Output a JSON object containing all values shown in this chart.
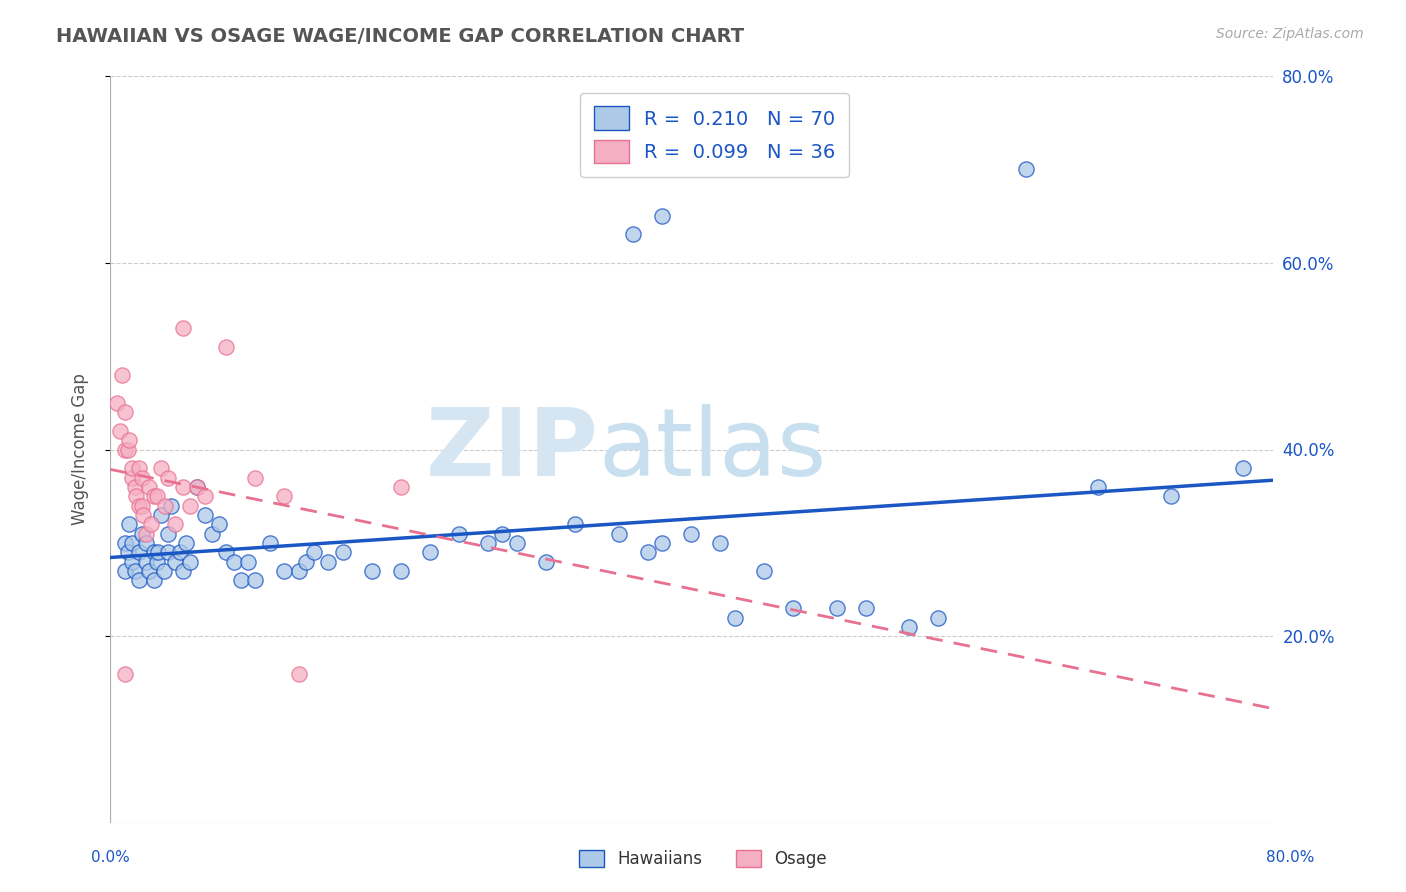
{
  "title": "HAWAIIAN VS OSAGE WAGE/INCOME GAP CORRELATION CHART",
  "source": "Source: ZipAtlas.com",
  "ylabel": "Wage/Income Gap",
  "xmin": 0.0,
  "xmax": 0.8,
  "ymin": 0.0,
  "ymax": 0.8,
  "yticks": [
    0.2,
    0.4,
    0.6,
    0.8
  ],
  "ytick_labels": [
    "20.0%",
    "40.0%",
    "60.0%",
    "80.0%"
  ],
  "watermark_zip": "ZIP",
  "watermark_atlas": "atlas",
  "hawaiians_R": 0.21,
  "hawaiians_N": 70,
  "osage_R": 0.099,
  "osage_N": 36,
  "hawaiian_color": "#adc9e8",
  "osage_color": "#f5afc4",
  "hawaiian_line_color": "#1a56c4",
  "osage_line_color": "#e87090",
  "hawaiian_scatter": [
    [
      0.01,
      0.27
    ],
    [
      0.01,
      0.3
    ],
    [
      0.012,
      0.29
    ],
    [
      0.013,
      0.32
    ],
    [
      0.015,
      0.28
    ],
    [
      0.015,
      0.3
    ],
    [
      0.017,
      0.27
    ],
    [
      0.02,
      0.26
    ],
    [
      0.02,
      0.29
    ],
    [
      0.022,
      0.31
    ],
    [
      0.025,
      0.3
    ],
    [
      0.025,
      0.28
    ],
    [
      0.027,
      0.27
    ],
    [
      0.03,
      0.29
    ],
    [
      0.03,
      0.26
    ],
    [
      0.032,
      0.28
    ],
    [
      0.033,
      0.29
    ],
    [
      0.035,
      0.33
    ],
    [
      0.037,
      0.27
    ],
    [
      0.04,
      0.29
    ],
    [
      0.04,
      0.31
    ],
    [
      0.042,
      0.34
    ],
    [
      0.045,
      0.28
    ],
    [
      0.048,
      0.29
    ],
    [
      0.05,
      0.27
    ],
    [
      0.052,
      0.3
    ],
    [
      0.055,
      0.28
    ],
    [
      0.06,
      0.36
    ],
    [
      0.065,
      0.33
    ],
    [
      0.07,
      0.31
    ],
    [
      0.075,
      0.32
    ],
    [
      0.08,
      0.29
    ],
    [
      0.085,
      0.28
    ],
    [
      0.09,
      0.26
    ],
    [
      0.095,
      0.28
    ],
    [
      0.1,
      0.26
    ],
    [
      0.11,
      0.3
    ],
    [
      0.12,
      0.27
    ],
    [
      0.13,
      0.27
    ],
    [
      0.135,
      0.28
    ],
    [
      0.14,
      0.29
    ],
    [
      0.15,
      0.28
    ],
    [
      0.16,
      0.29
    ],
    [
      0.18,
      0.27
    ],
    [
      0.2,
      0.27
    ],
    [
      0.22,
      0.29
    ],
    [
      0.24,
      0.31
    ],
    [
      0.26,
      0.3
    ],
    [
      0.27,
      0.31
    ],
    [
      0.28,
      0.3
    ],
    [
      0.3,
      0.28
    ],
    [
      0.32,
      0.32
    ],
    [
      0.35,
      0.31
    ],
    [
      0.37,
      0.29
    ],
    [
      0.38,
      0.3
    ],
    [
      0.4,
      0.31
    ],
    [
      0.42,
      0.3
    ],
    [
      0.43,
      0.22
    ],
    [
      0.45,
      0.27
    ],
    [
      0.47,
      0.23
    ],
    [
      0.5,
      0.23
    ],
    [
      0.52,
      0.23
    ],
    [
      0.55,
      0.21
    ],
    [
      0.57,
      0.22
    ],
    [
      0.36,
      0.63
    ],
    [
      0.38,
      0.65
    ],
    [
      0.63,
      0.7
    ],
    [
      0.68,
      0.36
    ],
    [
      0.73,
      0.35
    ],
    [
      0.78,
      0.38
    ]
  ],
  "osage_scatter": [
    [
      0.005,
      0.45
    ],
    [
      0.007,
      0.42
    ],
    [
      0.008,
      0.48
    ],
    [
      0.01,
      0.44
    ],
    [
      0.01,
      0.4
    ],
    [
      0.012,
      0.4
    ],
    [
      0.013,
      0.41
    ],
    [
      0.015,
      0.37
    ],
    [
      0.015,
      0.38
    ],
    [
      0.017,
      0.36
    ],
    [
      0.018,
      0.35
    ],
    [
      0.02,
      0.38
    ],
    [
      0.02,
      0.34
    ],
    [
      0.022,
      0.37
    ],
    [
      0.022,
      0.34
    ],
    [
      0.023,
      0.33
    ],
    [
      0.025,
      0.31
    ],
    [
      0.027,
      0.36
    ],
    [
      0.028,
      0.32
    ],
    [
      0.03,
      0.35
    ],
    [
      0.032,
      0.35
    ],
    [
      0.035,
      0.38
    ],
    [
      0.038,
      0.34
    ],
    [
      0.04,
      0.37
    ],
    [
      0.045,
      0.32
    ],
    [
      0.05,
      0.36
    ],
    [
      0.055,
      0.34
    ],
    [
      0.06,
      0.36
    ],
    [
      0.065,
      0.35
    ],
    [
      0.08,
      0.51
    ],
    [
      0.01,
      0.16
    ],
    [
      0.13,
      0.16
    ],
    [
      0.12,
      0.35
    ],
    [
      0.2,
      0.36
    ],
    [
      0.05,
      0.53
    ],
    [
      0.1,
      0.37
    ]
  ],
  "background_color": "#ffffff",
  "grid_color": "#cccccc"
}
